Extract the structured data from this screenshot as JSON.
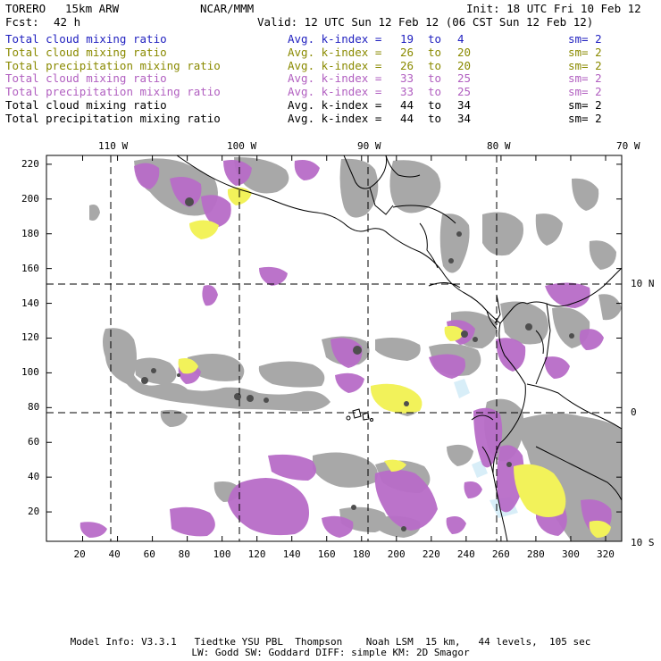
{
  "header": {
    "model": "TORERO",
    "resolution": "15km ARW",
    "org": "NCAR/MMM",
    "init": "Init: 18 UTC Fri 10 Feb 12",
    "fcst_label": "Fcst:",
    "fcst_value": "42 h",
    "valid": "Valid: 12 UTC Sun 12 Feb 12 (06 CST Sun 12 Feb 12)"
  },
  "legend": [
    {
      "field": "Total cloud mixing ratio",
      "avg": "Avg. k-index =",
      "k1": "19",
      "to": "to",
      "k2": "4",
      "sm": "sm= 2",
      "color": "#1f1fbf"
    },
    {
      "field": "Total cloud mixing ratio",
      "avg": "Avg. k-index =",
      "k1": "26",
      "to": "to",
      "k2": "20",
      "sm": "sm= 2",
      "color": "#8a8a00"
    },
    {
      "field": "Total precipitation mixing ratio",
      "avg": "Avg. k-index =",
      "k1": "26",
      "to": "to",
      "k2": "20",
      "sm": "sm= 2",
      "color": "#8a8a00"
    },
    {
      "field": "Total cloud mixing ratio",
      "avg": "Avg. k-index =",
      "k1": "33",
      "to": "to",
      "k2": "25",
      "sm": "sm= 2",
      "color": "#b15fc0"
    },
    {
      "field": "Total precipitation mixing ratio",
      "avg": "Avg. k-index =",
      "k1": "33",
      "to": "to",
      "k2": "25",
      "sm": "sm= 2",
      "color": "#b15fc0"
    },
    {
      "field": "Total cloud mixing ratio",
      "avg": "Avg. k-index =",
      "k1": "44",
      "to": "to",
      "k2": "34",
      "sm": "sm= 2",
      "color": "#000000"
    },
    {
      "field": "Total precipitation mixing ratio",
      "avg": "Avg. k-index =",
      "k1": "44",
      "to": "to",
      "k2": "34",
      "sm": "sm= 2",
      "color": "#000000"
    }
  ],
  "map": {
    "lon_labels": [
      "110 W",
      "100 W",
      "90 W",
      "80 W",
      "70 W"
    ],
    "lat_labels": [
      "10 N",
      "0",
      "10 S"
    ],
    "x_ticks": [
      "20",
      "40",
      "60",
      "80",
      "100",
      "120",
      "140",
      "160",
      "180",
      "200",
      "220",
      "240",
      "260",
      "280",
      "300",
      "320"
    ],
    "y_ticks": [
      "220",
      "200",
      "180",
      "160",
      "140",
      "120",
      "100",
      "80",
      "60",
      "40",
      "20"
    ],
    "colors": {
      "cloud_gray": "#a8a8a8",
      "cloud_dark": "#5a5a5a",
      "precip_purple": "#b86cc8",
      "precip_yellow": "#f2f25a",
      "light_blue": "#d8eef8",
      "coast": "#000000"
    }
  },
  "footer": {
    "line1": "Model Info: V3.3.1   Tiedtke YSU PBL  Thompson    Noah LSM  15 km,   44 levels,  105 sec",
    "line2": "LW: Godd SW: Goddard DIFF: simple KM: 2D Smagor"
  }
}
